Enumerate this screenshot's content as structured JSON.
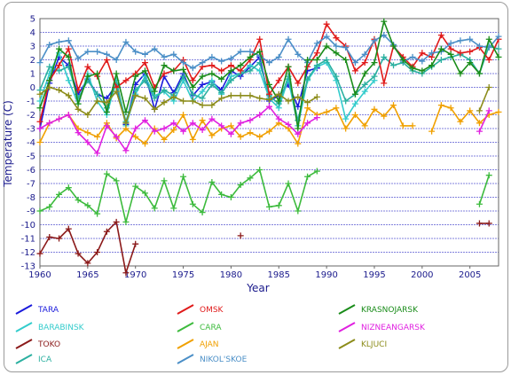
{
  "chart_data": {
    "type": "line",
    "xlabel": "Year",
    "ylabel": "Temperature (C)",
    "xlim": [
      1960,
      2008
    ],
    "ylim": [
      -13,
      5
    ],
    "x_ticks": [
      "1960",
      "1965",
      "1970",
      "1975",
      "1980",
      "1985",
      "1990",
      "1995",
      "2000",
      "2005"
    ],
    "y_ticks": [
      "5",
      "4",
      "3",
      "2",
      "1",
      "0",
      "-1",
      "-2",
      "-3",
      "-4",
      "-5",
      "-6",
      "-7",
      "-8",
      "-9",
      "-10",
      "-11",
      "-12",
      "-13"
    ],
    "grid": "horizontal",
    "legend_position": "bottom",
    "series": [
      {
        "name": "TARA",
        "color": "#1a1adc",
        "x": [
          1960,
          1961,
          1962,
          1963,
          1964,
          1965,
          1966,
          1967,
          1968,
          1969,
          1970,
          1971,
          1972,
          1973,
          1974,
          1975,
          1976,
          1977,
          1978,
          1979,
          1980,
          1981,
          1982,
          1983,
          1984,
          1985,
          1986,
          1987,
          1988,
          1989
        ],
        "y": [
          -3,
          0.3,
          2.2,
          1.6,
          -0.5,
          0.6,
          -0.5,
          -0.8,
          0.2,
          -2.7,
          0.2,
          1.0,
          -1.6,
          0.8,
          -0.4,
          1.0,
          -0.6,
          0.2,
          0.4,
          -0.2,
          1.2,
          0.8,
          1.5,
          2.2,
          -1.0,
          -0.6,
          0.2,
          -1.4,
          1.2,
          1.4
        ]
      },
      {
        "name": "BARABINSK",
        "color": "#33cccc",
        "x": [
          1960,
          1961,
          1962,
          1963,
          1964,
          1965,
          1966,
          1967,
          1968,
          1969,
          1970,
          1971,
          1972,
          1973,
          1974,
          1975,
          1976,
          1977,
          1978,
          1979,
          1980,
          1981,
          1982,
          1983,
          1984,
          1985,
          1986,
          1987,
          1988,
          1989,
          1990,
          1991,
          1992,
          1993,
          1994,
          1995
        ],
        "y": [
          -1.0,
          1.0,
          2.5,
          0.5,
          -1.2,
          1.0,
          -1.0,
          -2.0,
          0.5,
          -2.8,
          -0.5,
          0.8,
          -0.6,
          -0.3,
          -1.0,
          0.5,
          -1.0,
          -0.3,
          0.5,
          -0.5,
          0.8,
          1.0,
          1.6,
          1.2,
          -0.8,
          -1.5,
          0.6,
          -2.8,
          0.5,
          1.5,
          1.8,
          0.5,
          -2.3,
          -1.2,
          -0.3,
          0.5
        ]
      },
      {
        "name": "TOKO",
        "color": "#8b1a1a",
        "x": [
          1960,
          1961,
          1962,
          1963,
          1964,
          1965,
          1966,
          1967,
          1968,
          1969,
          1970
        ],
        "y": [
          -12.1,
          -10.9,
          -11.0,
          -10.3,
          -12.1,
          -12.8,
          -12.0,
          -10.5,
          -9.8,
          -13.5,
          -11.4
        ]
      },
      {
        "name": "TOKO",
        "color": "#8b1a1a",
        "x": [
          1981
        ],
        "y": [
          -10.8
        ]
      },
      {
        "name": "TOKO",
        "color": "#8b1a1a",
        "x": [
          2006,
          2007
        ],
        "y": [
          -9.9,
          -9.9
        ]
      },
      {
        "name": "ICA",
        "color": "#2bb0a0",
        "x": [
          1960,
          1961,
          1962,
          1963,
          1964,
          1965,
          1966,
          1967,
          1968,
          1969,
          1970,
          1971,
          1972,
          1973,
          1974,
          1975,
          1976,
          1977,
          1978,
          1979,
          1980,
          1981,
          1982,
          1983,
          1984,
          1985,
          1986,
          1987,
          1988,
          1989,
          1990,
          1991,
          1992,
          1993,
          1994,
          1995,
          1996,
          1997,
          1998,
          1999,
          2000,
          2001,
          2002,
          2003,
          2004,
          2005,
          2006,
          2007,
          2008
        ],
        "y": [
          -0.2,
          1.5,
          1.2,
          1.5,
          -0.8,
          0.5,
          -0.5,
          -1.5,
          0.3,
          -2.5,
          -0.2,
          0.5,
          -0.8,
          -0.2,
          -0.6,
          0.8,
          -0.5,
          -0.8,
          0.2,
          -0.4,
          0.5,
          1.0,
          1.2,
          1.8,
          -0.6,
          -1.2,
          0.8,
          -2.4,
          0.6,
          1.6,
          2.0,
          0.8,
          -1.0,
          -0.5,
          0.2,
          0.8,
          2.2,
          1.6,
          1.8,
          1.2,
          1.0,
          1.5,
          2.0,
          2.2,
          2.4,
          2.0,
          1.0,
          3.0,
          2.8
        ]
      },
      {
        "name": "OMSK",
        "color": "#e01a1a",
        "x": [
          1960,
          1961,
          1962,
          1963,
          1964,
          1965,
          1966,
          1967,
          1968,
          1969,
          1970,
          1971,
          1972,
          1973,
          1974,
          1975,
          1976,
          1977,
          1978,
          1979,
          1980,
          1981,
          1982,
          1983,
          1984,
          1985,
          1986,
          1987,
          1988,
          1989,
          1990,
          1991,
          1992,
          1993,
          1994,
          1995,
          1996,
          1997,
          1998,
          1999,
          2000,
          2001,
          2002,
          2003,
          2004,
          2005,
          2006,
          2007,
          2008
        ],
        "y": [
          -2.5,
          0.5,
          1.6,
          2.8,
          -0.2,
          1.5,
          0.8,
          2.0,
          0.0,
          0.5,
          1.0,
          1.8,
          0.0,
          1.0,
          1.2,
          2.0,
          0.5,
          1.5,
          1.6,
          1.2,
          1.6,
          1.2,
          2.0,
          3.5,
          -0.5,
          0.5,
          1.5,
          0.3,
          1.5,
          2.5,
          4.6,
          3.6,
          3.0,
          1.2,
          1.8,
          3.5,
          0.3,
          3.0,
          2.2,
          1.5,
          2.5,
          2.2,
          3.8,
          2.8,
          2.5,
          2.6,
          2.9,
          2.0,
          3.5
        ]
      },
      {
        "name": "CARA",
        "color": "#3dbb3d",
        "x": [
          1960,
          1961,
          1962,
          1963,
          1964,
          1965,
          1966,
          1967,
          1968,
          1969,
          1970,
          1971,
          1972,
          1973,
          1974,
          1975,
          1976,
          1977,
          1978,
          1979,
          1980,
          1981,
          1982,
          1983,
          1984,
          1985,
          1986,
          1987,
          1988,
          1989
        ],
        "y": [
          -9.0,
          -8.7,
          -7.8,
          -7.3,
          -8.2,
          -8.6,
          -9.2,
          -6.3,
          -6.8,
          -9.8,
          -7.2,
          -7.7,
          -8.8,
          -6.8,
          -8.8,
          -6.5,
          -8.5,
          -9.1,
          -6.9,
          -7.8,
          -8.0,
          -7.1,
          -6.6,
          -6.0,
          -8.7,
          -8.6,
          -7.0,
          -9.0,
          -6.5,
          -6.1
        ]
      },
      {
        "name": "CARA",
        "color": "#3dbb3d",
        "x": [
          2006,
          2007
        ],
        "y": [
          -8.5,
          -6.4
        ]
      },
      {
        "name": "AJAN",
        "color": "#f0a000",
        "x": [
          1960,
          1961,
          1962,
          1963,
          1964,
          1965,
          1966,
          1967,
          1968,
          1969,
          1970,
          1971,
          1972,
          1973,
          1974,
          1975,
          1976,
          1977,
          1978,
          1979,
          1980,
          1981,
          1982,
          1983,
          1984,
          1985,
          1986,
          1987,
          1988,
          1989,
          1990,
          1991,
          1992,
          1993,
          1994,
          1995,
          1996,
          1997,
          1998,
          1999
        ],
        "y": [
          -4.0,
          -2.6,
          -2.3,
          -2.0,
          -3.0,
          -3.3,
          -3.6,
          -2.6,
          -3.7,
          -3.0,
          -3.6,
          -4.1,
          -3.0,
          -3.8,
          -3.1,
          -2.0,
          -3.8,
          -2.4,
          -3.5,
          -3.0,
          -2.8,
          -3.6,
          -3.3,
          -3.6,
          -3.2,
          -2.6,
          -3.0,
          -4.1,
          -1.5,
          -2.0,
          -1.8,
          -1.5,
          -3.0,
          -2.0,
          -2.8,
          -1.6,
          -2.1,
          -1.3,
          -2.8,
          -2.8
        ]
      },
      {
        "name": "AJAN",
        "color": "#f0a000",
        "x": [
          2001,
          2002,
          2003,
          2004,
          2005,
          2006,
          2007,
          2008
        ],
        "y": [
          -3.2,
          -1.3,
          -1.5,
          -2.5,
          -1.7,
          -2.6,
          -2.0,
          -1.8
        ]
      },
      {
        "name": "NIKOL'SKOE",
        "color": "#4b8fc7",
        "x": [
          1960,
          1961,
          1962,
          1963,
          1964,
          1965,
          1966,
          1967,
          1968,
          1969,
          1970,
          1971,
          1972,
          1973,
          1974,
          1975,
          1976,
          1977,
          1978,
          1979,
          1980,
          1981,
          1982,
          1983,
          1984,
          1985,
          1986,
          1987,
          1988,
          1989,
          1990,
          1991,
          1992,
          1993,
          1994,
          1995,
          1996,
          1997,
          1998,
          1999,
          2000,
          2001,
          2002,
          2003,
          2004,
          2005,
          2006,
          2007,
          2008
        ],
        "y": [
          1.8,
          3.1,
          3.3,
          3.4,
          2.1,
          2.6,
          2.6,
          2.4,
          2.0,
          3.3,
          2.6,
          2.4,
          2.8,
          2.2,
          2.4,
          1.8,
          1.4,
          1.8,
          2.2,
          1.9,
          2.1,
          2.6,
          2.6,
          2.3,
          1.8,
          2.2,
          3.5,
          2.4,
          1.8,
          3.2,
          3.7,
          3.0,
          2.9,
          1.8,
          2.4,
          3.4,
          3.8,
          3.1,
          1.9,
          2.2,
          1.9,
          2.5,
          2.6,
          3.2,
          3.4,
          3.5,
          3.0,
          2.9,
          3.7
        ]
      },
      {
        "name": "KRASNOJARSK",
        "color": "#1a8c1a",
        "x": [
          1960,
          1961,
          1962,
          1963,
          1964,
          1965,
          1966,
          1967,
          1968,
          1969,
          1970,
          1971,
          1972,
          1973,
          1974,
          1975,
          1976,
          1977,
          1978,
          1979,
          1980,
          1981,
          1982,
          1983,
          1984,
          1985,
          1986,
          1987,
          1988,
          1989,
          1990,
          1991,
          1992,
          1993,
          1994,
          1995,
          1996,
          1997,
          1998,
          1999,
          2000,
          2001,
          2002,
          2003,
          2004,
          2005,
          2006,
          2007,
          2008
        ],
        "y": [
          -1.5,
          0.5,
          2.8,
          2.2,
          -1.2,
          0.8,
          1.0,
          -1.8,
          1.0,
          -1.8,
          0.8,
          1.2,
          -0.3,
          1.6,
          1.2,
          1.3,
          0.0,
          0.8,
          1.0,
          0.6,
          1.2,
          1.6,
          2.2,
          2.6,
          0.2,
          -1.0,
          1.5,
          -3.0,
          2.0,
          2.0,
          3.0,
          2.5,
          2.0,
          -0.5,
          1.0,
          1.8,
          4.8,
          3.0,
          2.0,
          1.4,
          1.2,
          1.6,
          2.8,
          2.4,
          1.0,
          1.8,
          1.0,
          3.5,
          2.2
        ]
      },
      {
        "name": "NIZNEANGARSK",
        "color": "#e020e0",
        "x": [
          1960,
          1961,
          1962,
          1963,
          1964,
          1965,
          1966,
          1967,
          1968,
          1969,
          1970,
          1971,
          1972,
          1973,
          1974,
          1975,
          1976,
          1977,
          1978,
          1979,
          1980,
          1981,
          1982,
          1983,
          1984,
          1985,
          1986,
          1987,
          1988,
          1989
        ],
        "y": [
          -3.0,
          -2.6,
          -2.3,
          -2.0,
          -3.3,
          -4.0,
          -4.8,
          -2.8,
          -3.6,
          -4.6,
          -3.0,
          -2.4,
          -3.2,
          -3.0,
          -2.6,
          -3.2,
          -2.6,
          -3.1,
          -2.3,
          -2.8,
          -3.4,
          -2.6,
          -2.4,
          -2.0,
          -1.4,
          -2.3,
          -2.7,
          -3.4,
          -2.6,
          -2.2
        ]
      },
      {
        "name": "NIZNEANGARSK",
        "color": "#e020e0",
        "x": [
          2006,
          2007
        ],
        "y": [
          -3.2,
          -1.7
        ]
      },
      {
        "name": "KLJUCI",
        "color": "#8c8c1a",
        "x": [
          1960,
          1961,
          1962,
          1963,
          1964,
          1965,
          1966,
          1967,
          1968,
          1969,
          1970,
          1971,
          1972,
          1973,
          1974,
          1975,
          1976,
          1977,
          1978,
          1979,
          1980,
          1981,
          1982,
          1983,
          1984,
          1985,
          1986,
          1987,
          1988,
          1989
        ],
        "y": [
          -0.5,
          0.0,
          -0.2,
          -0.6,
          -1.6,
          -2.0,
          -1.0,
          -1.1,
          -0.3,
          -2.6,
          -0.6,
          -0.8,
          -1.6,
          -1.1,
          -0.7,
          -1.0,
          -1.0,
          -1.3,
          -1.3,
          -0.8,
          -0.6,
          -0.6,
          -0.6,
          -0.8,
          -0.9,
          -0.5,
          -1.0,
          -0.7,
          -1.1,
          -0.7
        ]
      },
      {
        "name": "KLJUCI",
        "color": "#8c8c1a",
        "x": [
          2006,
          2007
        ],
        "y": [
          -1.7,
          0.0
        ]
      }
    ],
    "legend": [
      {
        "name": "TARA",
        "color": "#1a1adc"
      },
      {
        "name": "OMSK",
        "color": "#e01a1a"
      },
      {
        "name": "KRASNOJARSK",
        "color": "#1a8c1a"
      },
      {
        "name": "BARABINSK",
        "color": "#33cccc"
      },
      {
        "name": "CARA",
        "color": "#3dbb3d"
      },
      {
        "name": "NIZNEANGARSK",
        "color": "#e020e0"
      },
      {
        "name": "TOKO",
        "color": "#8b1a1a"
      },
      {
        "name": "AJAN",
        "color": "#f0a000"
      },
      {
        "name": "KLJUCI",
        "color": "#8c8c1a"
      },
      {
        "name": "ICA",
        "color": "#2bb0a0"
      },
      {
        "name": "NIKOL'SKOE",
        "color": "#4b8fc7"
      }
    ]
  }
}
